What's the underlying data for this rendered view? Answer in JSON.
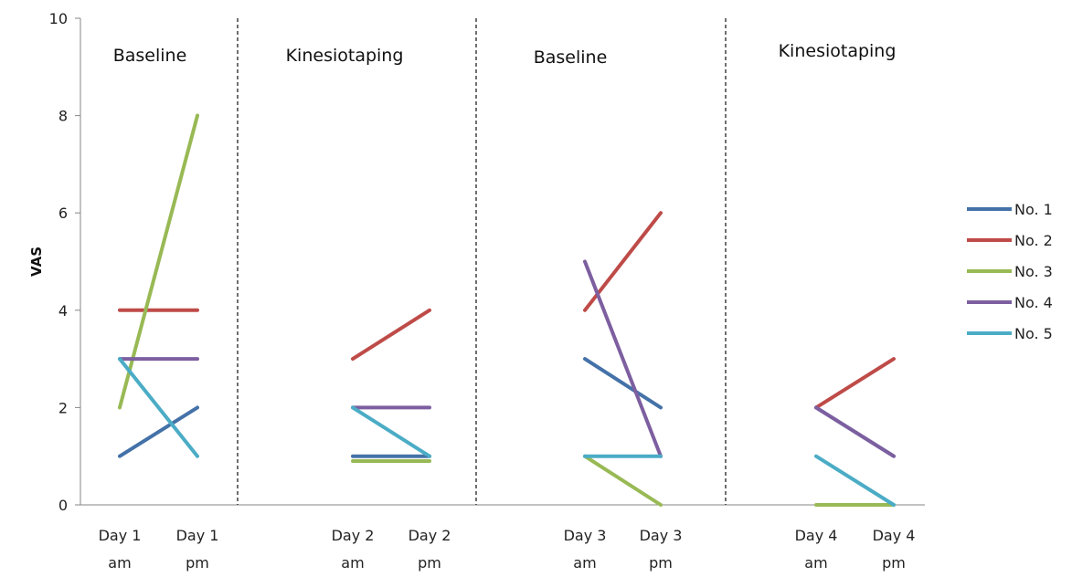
{
  "chart_data": {
    "type": "line",
    "ylabel": "VAS",
    "ylim": [
      0,
      10
    ],
    "y_ticks": [
      "0",
      "2",
      "4",
      "6",
      "8",
      "10"
    ],
    "categories": [
      [
        "Day 1",
        "am"
      ],
      [
        "Day 1",
        "pm"
      ],
      [
        "Day 2",
        "am"
      ],
      [
        "Day 2",
        "pm"
      ],
      [
        "Day 3",
        "am"
      ],
      [
        "Day 3",
        "pm"
      ],
      [
        "Day 4",
        "am"
      ],
      [
        "Day 4",
        "pm"
      ]
    ],
    "phases": [
      {
        "label": "Baseline",
        "categories": [
          0,
          1
        ]
      },
      {
        "label": "Kinesiotaping",
        "categories": [
          2,
          3
        ]
      },
      {
        "label": "Baseline",
        "categories": [
          4,
          5
        ]
      },
      {
        "label": "Kinesiotaping",
        "categories": [
          6,
          7
        ]
      }
    ],
    "legend_position": "right",
    "series": [
      {
        "name": "No. 1",
        "color": "#4472A8",
        "values": [
          1,
          2,
          1,
          1,
          3,
          2,
          2,
          1
        ]
      },
      {
        "name": "No. 2",
        "color": "#BE4B48",
        "values": [
          4,
          4,
          3,
          4,
          4,
          6,
          2,
          3
        ]
      },
      {
        "name": "No. 3",
        "color": "#98B954",
        "values": [
          2,
          8,
          0.9,
          0.9,
          1,
          0,
          0,
          0
        ]
      },
      {
        "name": "No. 4",
        "color": "#7D5FA0",
        "values": [
          3,
          3,
          2,
          2,
          5,
          1,
          2,
          1
        ]
      },
      {
        "name": "No. 5",
        "color": "#4BACC6",
        "values": [
          3,
          1,
          2,
          1,
          1,
          1,
          1,
          0
        ]
      }
    ]
  }
}
